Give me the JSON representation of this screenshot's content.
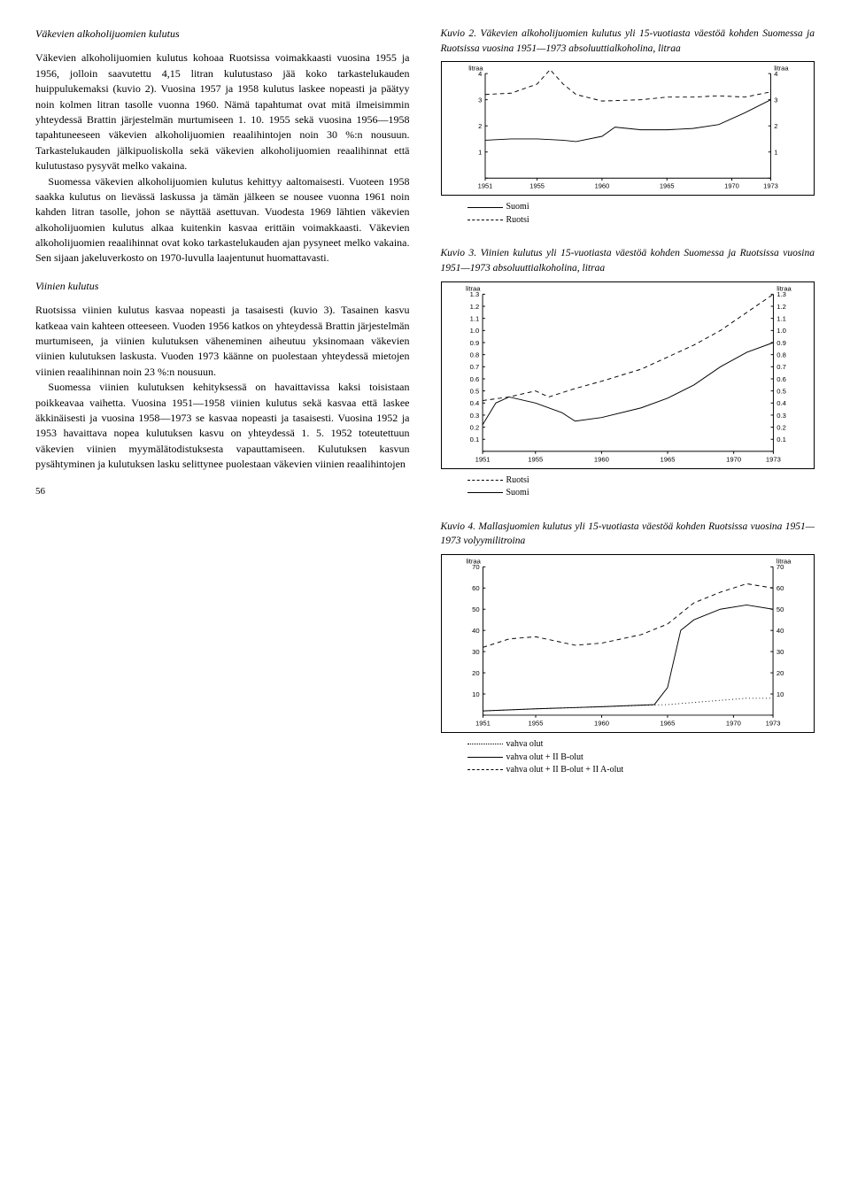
{
  "left": {
    "heading1": "Väkevien alkoholijuomien kulutus",
    "p1": "Väkevien alkoholijuomien kulutus kohoaa Ruotsissa voimakkaasti vuosina 1955 ja 1956, jolloin saavutettu 4,15 litran kulutustaso jää koko tarkastelukauden huippulukemaksi (kuvio 2). Vuosina 1957 ja 1958 kulutus laskee nopeasti ja päätyy noin kolmen litran tasolle vuonna 1960. Nämä tapahtumat ovat mitä ilmeisimmin yhteydessä Brattin järjestelmän murtumiseen 1. 10. 1955 sekä vuosina 1956—1958 tapahtuneeseen väkevien alkoholijuomien reaalihintojen noin 30 %:n nousuun. Tarkastelukauden jälkipuoliskolla sekä väkevien alkoholijuomien reaalihinnat että kulutustaso pysyvät melko vakaina.",
    "p2": "Suomessa väkevien alkoholijuomien kulutus kehittyy aaltomaisesti. Vuoteen 1958 saakka kulutus on lievässä laskussa ja tämän jälkeen se nousee vuonna 1961 noin kahden litran tasolle, johon se näyttää asettuvan. Vuodesta 1969 lähtien väkevien alkoholijuomien kulutus alkaa kuitenkin kasvaa erittäin voimakkaasti. Väkevien alkoholijuomien reaalihinnat ovat koko tarkastelukauden ajan pysyneet melko vakaina. Sen sijaan jakeluverkosto on 1970-luvulla laajentunut huomattavasti.",
    "heading2": "Viinien kulutus",
    "p3": "Ruotsissa viinien kulutus kasvaa nopeasti ja tasaisesti (kuvio 3). Tasainen kasvu katkeaa vain kahteen otteeseen. Vuoden 1956 katkos on yhteydessä Brattin järjestelmän murtumiseen, ja viinien kulutuksen väheneminen aiheutuu yksinomaan väkevien viinien kulutuksen laskusta. Vuoden 1973 käänne on puolestaan yhteydessä mietojen viinien reaalihinnan noin 23 %:n nousuun.",
    "p4": "Suomessa viinien kulutuksen kehityksessä on havaittavissa kaksi toisistaan poikkeavaa vaihetta. Vuosina 1951—1958 viinien kulutus sekä kasvaa että laskee äkkinäisesti ja vuosina 1958—1973 se kasvaa nopeasti ja tasaisesti. Vuosina 1952 ja 1953 havaittava nopea kulutuksen kasvu on yhteydessä 1. 5. 1952 toteutettuun väkevien viinien myymälätodistuksesta vapauttamiseen. Kulutuksen kasvun pysähtyminen ja kulutuksen lasku selittynee puolestaan väkevien viinien reaalihintojen",
    "pagenum": "56"
  },
  "fig2": {
    "caption_label": "Kuvio 2.",
    "caption": "Väkevien alkoholijuomien kulutus yli 15-vuotiasta väestöä kohden Suomessa ja Ruotsissa vuosina 1951—1973 absoluuttialkoholina, litraa",
    "ylabel_left": "litraa",
    "ylabel_right": "litraa",
    "ylim": [
      0,
      4
    ],
    "ytick_step": 1,
    "xlim": [
      1951,
      1973
    ],
    "xticks": [
      1951,
      1955,
      1960,
      1965,
      1970,
      1973
    ],
    "series": [
      {
        "name": "Suomi",
        "style": "solid",
        "color": "#000000",
        "x": [
          1951,
          1953,
          1955,
          1957,
          1958,
          1960,
          1961,
          1963,
          1965,
          1967,
          1969,
          1971,
          1973
        ],
        "y": [
          1.45,
          1.5,
          1.5,
          1.45,
          1.4,
          1.6,
          1.95,
          1.85,
          1.85,
          1.9,
          2.05,
          2.5,
          3.0
        ]
      },
      {
        "name": "Ruotsi",
        "style": "dash",
        "color": "#000000",
        "x": [
          1951,
          1953,
          1955,
          1956,
          1957,
          1958,
          1960,
          1963,
          1965,
          1967,
          1969,
          1971,
          1973
        ],
        "y": [
          3.2,
          3.25,
          3.6,
          4.15,
          3.6,
          3.2,
          2.95,
          3.0,
          3.1,
          3.1,
          3.15,
          3.1,
          3.3
        ]
      }
    ],
    "legend": [
      {
        "style": "solid",
        "label": "Suomi"
      },
      {
        "style": "dash",
        "label": "Ruotsi"
      }
    ],
    "grid": false,
    "background": "#ffffff",
    "line_width": 1
  },
  "fig3": {
    "caption_label": "Kuvio 3.",
    "caption": "Viinien kulutus yli 15-vuotiasta väestöä kohden Suomessa ja Ruotsissa vuosina 1951—1973 absoluuttialkoholina, litraa",
    "ylabel_left": "litraa",
    "ylabel_right": "litraa",
    "ylim": [
      0,
      1.3
    ],
    "ytick_step": 0.1,
    "xlim": [
      1951,
      1973
    ],
    "xticks": [
      1951,
      1955,
      1960,
      1965,
      1970,
      1973
    ],
    "series": [
      {
        "name": "Ruotsi",
        "style": "dash",
        "color": "#000000",
        "x": [
          1951,
          1953,
          1955,
          1956,
          1958,
          1960,
          1963,
          1965,
          1967,
          1969,
          1971,
          1973
        ],
        "y": [
          0.42,
          0.45,
          0.5,
          0.45,
          0.52,
          0.58,
          0.68,
          0.78,
          0.88,
          1.0,
          1.15,
          1.3
        ]
      },
      {
        "name": "Suomi",
        "style": "solid",
        "color": "#000000",
        "x": [
          1951,
          1952,
          1953,
          1955,
          1957,
          1958,
          1960,
          1963,
          1965,
          1967,
          1969,
          1971,
          1973
        ],
        "y": [
          0.22,
          0.4,
          0.45,
          0.4,
          0.32,
          0.25,
          0.28,
          0.36,
          0.44,
          0.55,
          0.7,
          0.82,
          0.9
        ]
      }
    ],
    "legend": [
      {
        "style": "dash",
        "label": "Ruotsi"
      },
      {
        "style": "solid",
        "label": "Suomi"
      }
    ],
    "grid": false,
    "background": "#ffffff",
    "line_width": 1
  },
  "fig4": {
    "caption_label": "Kuvio 4.",
    "caption": "Mallasjuomien kulutus yli 15-vuotiasta väestöä kohden Ruotsissa vuosina 1951—1973 volyymilitroina",
    "ylabel_left": "litraa",
    "ylabel_right": "litraa",
    "ylim": [
      0,
      70
    ],
    "ytick_step": 10,
    "xlim": [
      1951,
      1973
    ],
    "xticks": [
      1951,
      1955,
      1960,
      1965,
      1970,
      1973
    ],
    "series": [
      {
        "name": "vahva olut",
        "style": "dot",
        "color": "#000000",
        "x": [
          1951,
          1955,
          1960,
          1965,
          1969,
          1971,
          1973
        ],
        "y": [
          2,
          3,
          4,
          5,
          7,
          8,
          8
        ]
      },
      {
        "name": "vahva olut + II B-olut",
        "style": "solid",
        "color": "#000000",
        "x": [
          1951,
          1955,
          1960,
          1964,
          1965,
          1966,
          1967,
          1969,
          1971,
          1973
        ],
        "y": [
          2,
          3,
          4,
          5,
          13,
          40,
          45,
          50,
          52,
          50
        ]
      },
      {
        "name": "vahva olut + II B-olut + II A-olut",
        "style": "dash",
        "color": "#000000",
        "x": [
          1951,
          1953,
          1955,
          1958,
          1960,
          1963,
          1965,
          1967,
          1969,
          1971,
          1973
        ],
        "y": [
          32,
          36,
          37,
          33,
          34,
          38,
          43,
          53,
          58,
          62,
          60
        ]
      }
    ],
    "legend": [
      {
        "style": "dot",
        "label": "vahva olut"
      },
      {
        "style": "solid",
        "label": "vahva olut + II B-olut"
      },
      {
        "style": "dash",
        "label": "vahva olut + II B-olut + II A-olut"
      }
    ],
    "grid": false,
    "background": "#ffffff",
    "line_width": 1
  }
}
